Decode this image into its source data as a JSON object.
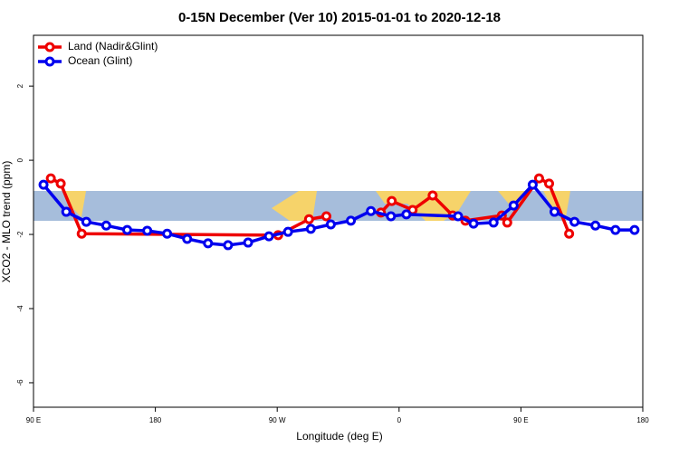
{
  "chart_data": {
    "type": "line",
    "title": "0-15N December (Ver 10)   2015-01-01 to 2020-12-18",
    "x_label": "Longitude (deg E)",
    "y_label": "XCO2 - MLO trend (ppm)",
    "xlim": [
      90,
      540
    ],
    "ylim": [
      -6.66,
      3.37
    ],
    "xticks": [
      {
        "value": 90,
        "label": "90 E"
      },
      {
        "value": 180,
        "label": "180"
      },
      {
        "value": 270,
        "label": "90 W"
      },
      {
        "value": 360,
        "label": "0"
      },
      {
        "value": 450,
        "label": "90 E"
      },
      {
        "value": 540,
        "label": "180"
      }
    ],
    "yticks": [
      2,
      0,
      -2,
      -4,
      -6
    ],
    "legend": "top-left",
    "series": [
      {
        "name": "Land (Nadir&Glint)",
        "color": "#ee0000",
        "x": [
          102.8,
          110.1,
          125.6,
          270.7,
          293.5,
          306.3,
          null,
          346.6,
          354.6,
          370,
          384.8,
          399.6,
          409,
          435.9,
          439.9,
          463.4,
          470.8,
          485.6
        ],
        "values": [
          -0.49,
          -0.63,
          -1.98,
          -2.02,
          -1.59,
          -1.51,
          null,
          -1.41,
          -1.1,
          -1.34,
          -0.95,
          -1.49,
          -1.63,
          -1.49,
          -1.68,
          -0.49,
          -0.63,
          -1.98
        ]
      },
      {
        "name": "Ocean (Glint)",
        "color": "#0000ee",
        "x": [
          97.4,
          114.2,
          129,
          143.7,
          159.2,
          174,
          188.7,
          203.5,
          218.9,
          233.7,
          248.5,
          263.9,
          278,
          294.8,
          309.6,
          324.4,
          339.2,
          354,
          365.4,
          403.6,
          415,
          429.8,
          444.6,
          458.7,
          474.8,
          489.6,
          505,
          519.8,
          533.9
        ],
        "values": [
          -0.66,
          -1.39,
          -1.66,
          -1.76,
          -1.88,
          -1.9,
          -1.98,
          -2.12,
          -2.24,
          -2.29,
          -2.22,
          -2.05,
          -1.93,
          -1.85,
          -1.73,
          -1.63,
          -1.37,
          -1.51,
          -1.46,
          -1.51,
          -1.71,
          -1.68,
          -1.22,
          -0.66,
          -1.39,
          -1.66,
          -1.76,
          -1.88,
          -1.88
        ]
      }
    ]
  }
}
